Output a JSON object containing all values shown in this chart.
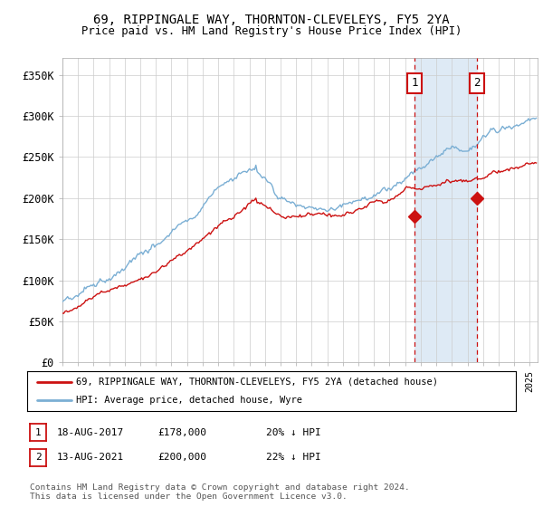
{
  "title1": "69, RIPPINGALE WAY, THORNTON-CLEVELEYS, FY5 2YA",
  "title2": "Price paid vs. HM Land Registry's House Price Index (HPI)",
  "ylabel_ticks": [
    "£0",
    "£50K",
    "£100K",
    "£150K",
    "£200K",
    "£250K",
    "£300K",
    "£350K"
  ],
  "ytick_vals": [
    0,
    50000,
    100000,
    150000,
    200000,
    250000,
    300000,
    350000
  ],
  "ylim": [
    0,
    370000
  ],
  "xlim_start": 1995.0,
  "xlim_end": 2025.5,
  "sale1_date": 2017.617,
  "sale1_price": 178000,
  "sale2_date": 2021.617,
  "sale2_price": 200000,
  "legend_line1": "69, RIPPINGALE WAY, THORNTON-CLEVELEYS, FY5 2YA (detached house)",
  "legend_line2": "HPI: Average price, detached house, Wyre",
  "annotation1_date": "18-AUG-2017",
  "annotation1_price": "£178,000",
  "annotation1_hpi": "20% ↓ HPI",
  "annotation2_date": "13-AUG-2021",
  "annotation2_price": "£200,000",
  "annotation2_hpi": "22% ↓ HPI",
  "footer": "Contains HM Land Registry data © Crown copyright and database right 2024.\nThis data is licensed under the Open Government Licence v3.0.",
  "hpi_color": "#7bafd4",
  "price_color": "#cc1111",
  "sale_dot_color": "#cc1111",
  "vline_color": "#cc1111",
  "shade_color": "#deeaf5",
  "grid_color": "#cccccc",
  "bg_color": "#ffffff"
}
